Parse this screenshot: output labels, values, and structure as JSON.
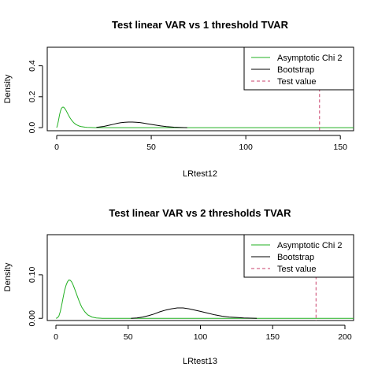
{
  "colors": {
    "asymptotic": "#22b022",
    "bootstrap": "#000000",
    "testvalue": "#c9416b",
    "frame": "#000000"
  },
  "chart_data": [
    {
      "type": "line",
      "title": "Test linear VAR vs 1 threshold TVAR",
      "xlabel": "LRtest12",
      "ylabel": "Density",
      "xlim": [
        -5,
        157
      ],
      "ylim": [
        -0.02,
        0.52
      ],
      "xticks": [
        0,
        50,
        100,
        150
      ],
      "yticks": [
        0.0,
        0.2,
        0.4
      ],
      "ytick_labels": [
        "0.0",
        "0.2",
        "0.4"
      ],
      "legend": {
        "position": "top-right",
        "entries": [
          "Asymptotic Chi 2",
          "Bootstrap",
          "Test value"
        ]
      },
      "series": [
        {
          "name": "Asymptotic Chi 2",
          "color_key": "asymptotic",
          "x": [
            0,
            0.5,
            1,
            1.5,
            2,
            2.5,
            3,
            3.5,
            4,
            4.5,
            5,
            5.5,
            6,
            7,
            8,
            9,
            10,
            11,
            12,
            13,
            14,
            15,
            16,
            18,
            20,
            22,
            25,
            30,
            35,
            40,
            50,
            60,
            80,
            100,
            120,
            140,
            157
          ],
          "y": [
            0,
            0.02,
            0.05,
            0.083,
            0.108,
            0.124,
            0.132,
            0.133,
            0.128,
            0.12,
            0.11,
            0.098,
            0.086,
            0.064,
            0.046,
            0.032,
            0.022,
            0.015,
            0.01,
            0.007,
            0.005,
            0.003,
            0.002,
            0.001,
            0,
            0,
            0,
            0,
            0,
            0,
            0,
            0,
            0,
            0,
            0,
            0,
            0
          ]
        },
        {
          "name": "Bootstrap",
          "color_key": "bootstrap",
          "x": [
            21,
            25,
            28,
            30,
            32,
            34,
            36,
            38,
            40,
            42,
            44,
            46,
            48,
            50,
            52,
            55,
            58,
            62,
            66,
            69
          ],
          "y": [
            0.002,
            0.008,
            0.016,
            0.022,
            0.028,
            0.032,
            0.035,
            0.036,
            0.036,
            0.035,
            0.033,
            0.029,
            0.025,
            0.021,
            0.017,
            0.011,
            0.007,
            0.003,
            0.001,
            0
          ]
        }
      ],
      "test_value": 139
    },
    {
      "type": "line",
      "title": "Test linear VAR vs 2 thresholds TVAR",
      "xlabel": "LRtest13",
      "ylabel": "Density",
      "xlim": [
        -6,
        206
      ],
      "ylim": [
        -0.005,
        0.192
      ],
      "xticks": [
        0,
        50,
        100,
        150,
        200
      ],
      "yticks": [
        0.0,
        0.1
      ],
      "ytick_labels": [
        "0.00",
        "0.10"
      ],
      "legend": {
        "position": "top-right",
        "entries": [
          "Asymptotic Chi 2",
          "Bootstrap",
          "Test value"
        ]
      },
      "series": [
        {
          "name": "Asymptotic Chi 2",
          "color_key": "asymptotic",
          "x": [
            0,
            1,
            2,
            3,
            4,
            5,
            6,
            7,
            8,
            9,
            10,
            11,
            12,
            13,
            14,
            15,
            16,
            17,
            18,
            20,
            22,
            25,
            28,
            32,
            36,
            40,
            50,
            60,
            80,
            100,
            120,
            150,
            180,
            206
          ],
          "y": [
            0,
            0.001,
            0.005,
            0.015,
            0.03,
            0.048,
            0.064,
            0.076,
            0.084,
            0.088,
            0.087,
            0.083,
            0.076,
            0.067,
            0.058,
            0.049,
            0.04,
            0.032,
            0.025,
            0.015,
            0.008,
            0.003,
            0.001,
            0,
            0,
            0,
            0,
            0,
            0,
            0,
            0,
            0,
            0,
            0
          ]
        },
        {
          "name": "Bootstrap",
          "color_key": "bootstrap",
          "x": [
            52,
            56,
            60,
            64,
            68,
            72,
            76,
            80,
            84,
            88,
            92,
            96,
            100,
            105,
            110,
            115,
            120,
            125,
            130,
            135,
            139
          ],
          "y": [
            0,
            0.001,
            0.003,
            0.006,
            0.01,
            0.015,
            0.019,
            0.022,
            0.024,
            0.024,
            0.022,
            0.019,
            0.016,
            0.012,
            0.008,
            0.005,
            0.003,
            0.002,
            0.001,
            0.0005,
            0
          ]
        }
      ],
      "test_value": 180
    }
  ]
}
